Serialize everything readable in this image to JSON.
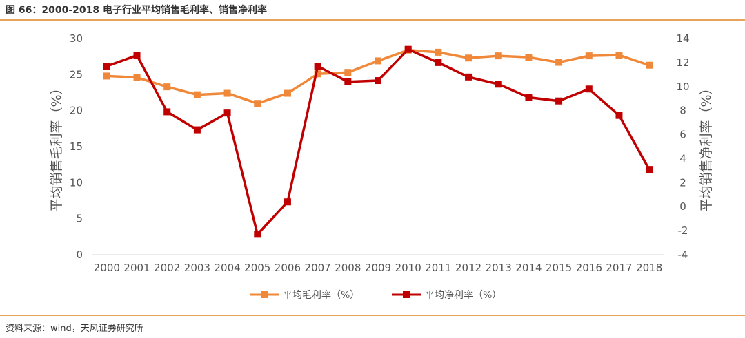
{
  "header": {
    "title": "图 66：2000-2018 电子行业平均销售毛利率、销售净利率"
  },
  "footer": {
    "source": "资料来源：wind，天风证券研究所"
  },
  "colors": {
    "gross": "#f0883a",
    "net": "#c00000",
    "rule": "#e8a35c"
  },
  "chart_data": {
    "type": "line",
    "categories": [
      "2000",
      "2001",
      "2002",
      "2003",
      "2004",
      "2005",
      "2006",
      "2007",
      "2008",
      "2009",
      "2010",
      "2011",
      "2012",
      "2013",
      "2014",
      "2015",
      "2016",
      "2017",
      "2018"
    ],
    "series": [
      {
        "name": "平均毛利率（%）",
        "axis": "left",
        "values": [
          24.8,
          24.6,
          23.3,
          22.2,
          22.4,
          21.0,
          22.4,
          25.1,
          25.3,
          26.9,
          28.4,
          28.1,
          27.3,
          27.6,
          27.4,
          26.7,
          27.6,
          27.7,
          26.3
        ]
      },
      {
        "name": "平均净利率（%）",
        "axis": "right",
        "values": [
          11.7,
          12.6,
          7.9,
          6.4,
          7.8,
          -2.3,
          0.4,
          11.7,
          10.4,
          10.5,
          13.1,
          12.0,
          10.8,
          10.2,
          9.1,
          8.8,
          9.8,
          7.6,
          3.1
        ]
      }
    ],
    "ylabel": "平均销售毛利率（%）",
    "y2label": "平均销售净利率（%）",
    "ylim": [
      0,
      30
    ],
    "yticks": [
      "0",
      "5",
      "10",
      "15",
      "20",
      "25",
      "30"
    ],
    "y2lim": [
      -4,
      14
    ],
    "y2ticks": [
      "-4",
      "-2",
      "0",
      "2",
      "4",
      "6",
      "8",
      "10",
      "12",
      "14"
    ],
    "grid": false,
    "legend_position": "bottom"
  }
}
